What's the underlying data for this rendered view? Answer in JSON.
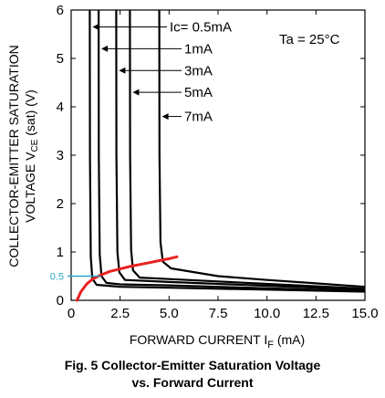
{
  "chart_data": {
    "type": "line",
    "title": "",
    "caption": [
      "Fig. 5 Collector-Emitter Saturation Voltage",
      "vs. Forward Current"
    ],
    "xlabel": "FORWARD CURRENT I",
    "xlabel_sub": "F",
    "xlabel_unit": " (mA)",
    "ylabel_line1": "COLLECTOR-EMITTER SATURATION",
    "ylabel_line2": "VOLTAGE V",
    "ylabel_sub": "CE",
    "ylabel_unit": " (sat) (V)",
    "xlim": [
      0,
      15.0
    ],
    "ylim": [
      0,
      6
    ],
    "x_ticks": [
      0,
      2.5,
      5.0,
      7.5,
      10.0,
      12.5,
      15.0
    ],
    "x_tick_labels": [
      "0",
      "2.5",
      "5.0",
      "7.5",
      "10.0",
      "12.5",
      "15.0"
    ],
    "y_ticks": [
      0,
      1,
      2,
      3,
      4,
      5,
      6
    ],
    "y_tick_labels": [
      "0",
      "1",
      "2",
      "3",
      "4",
      "5",
      "6"
    ],
    "grid": false,
    "condition": "Ta = 25°C",
    "series": [
      {
        "name": "Ic= 0.5mA",
        "label_y": 5.65,
        "x": [
          0.95,
          0.96,
          1.0,
          1.08,
          1.3,
          2.5,
          5.0,
          7.5,
          10.0,
          12.5,
          15.0
        ],
        "y": [
          6.0,
          3.0,
          0.9,
          0.45,
          0.32,
          0.28,
          0.26,
          0.24,
          0.22,
          0.2,
          0.18
        ]
      },
      {
        "name": "1mA",
        "label_y": 5.2,
        "x": [
          1.4,
          1.41,
          1.46,
          1.55,
          1.8,
          2.5,
          5.0,
          7.5,
          10.0,
          12.5,
          15.0
        ],
        "y": [
          6.0,
          3.0,
          0.95,
          0.5,
          0.36,
          0.33,
          0.31,
          0.28,
          0.25,
          0.22,
          0.19
        ]
      },
      {
        "name": "3mA",
        "label_y": 4.75,
        "x": [
          2.3,
          2.31,
          2.36,
          2.46,
          2.75,
          5.0,
          7.5,
          10.0,
          12.5,
          15.0
        ],
        "y": [
          6.0,
          3.0,
          1.0,
          0.58,
          0.42,
          0.38,
          0.34,
          0.3,
          0.26,
          0.22
        ]
      },
      {
        "name": "5mA",
        "label_y": 4.3,
        "x": [
          3.0,
          3.01,
          3.06,
          3.16,
          3.5,
          5.0,
          7.5,
          10.0,
          12.5,
          15.0
        ],
        "y": [
          6.0,
          3.0,
          1.05,
          0.62,
          0.47,
          0.44,
          0.39,
          0.34,
          0.29,
          0.24
        ]
      },
      {
        "name": "7mA",
        "label_y": 3.8,
        "x": [
          4.5,
          4.51,
          4.56,
          4.68,
          5.1,
          7.5,
          10.0,
          12.5,
          15.0
        ],
        "y": [
          6.0,
          3.0,
          1.2,
          0.8,
          0.66,
          0.5,
          0.42,
          0.35,
          0.28
        ]
      }
    ],
    "highlight": {
      "color": "#e8211f",
      "x": [
        0.3,
        0.5,
        0.8,
        1.1,
        1.5,
        2.0,
        2.5,
        3.0,
        3.5,
        4.0,
        4.5,
        5.0,
        5.4
      ],
      "y": [
        0.0,
        0.18,
        0.34,
        0.44,
        0.52,
        0.6,
        0.65,
        0.7,
        0.74,
        0.78,
        0.82,
        0.86,
        0.9
      ]
    },
    "reference": {
      "color": "#2aa6c9",
      "y": 0.5,
      "label": "0.5",
      "x_end": 1.5
    }
  }
}
